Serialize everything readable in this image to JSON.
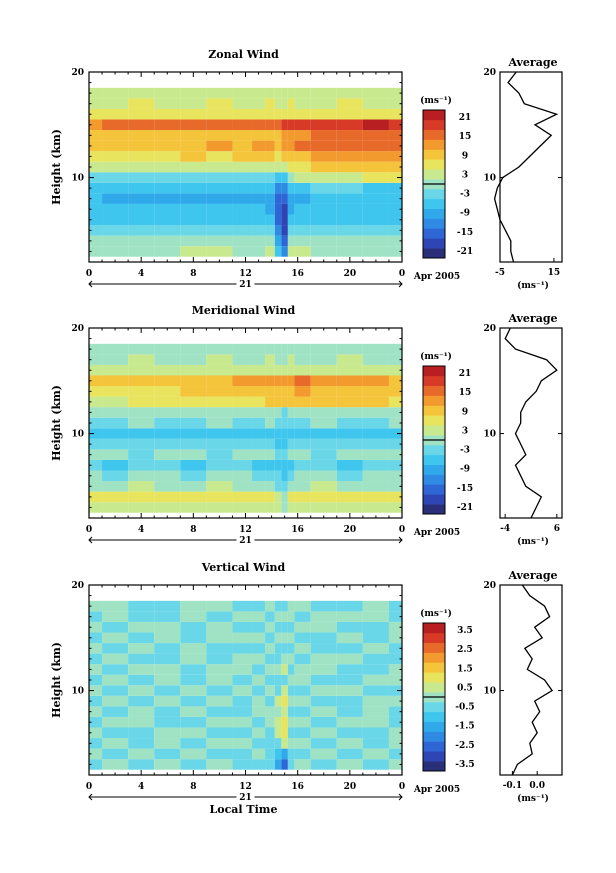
{
  "colorbar_colors": [
    "#2a2f7a",
    "#2e46b3",
    "#2f66d6",
    "#2f8ae3",
    "#2fa9ea",
    "#3fc6ee",
    "#6ad7e8",
    "#9fe3c4",
    "#c9e98e",
    "#e9e45d",
    "#f4c43a",
    "#f29a2e",
    "#e86a2a",
    "#d83a28",
    "#b81f22"
  ],
  "date_label": "Apr 2005",
  "day_label": "21",
  "xlabel": "Local Time",
  "panels": [
    {
      "title": "Zonal Wind",
      "ylabel": "Height (km)",
      "unit_label": "(ms⁻¹)",
      "colorbar_ticks": [
        "21",
        "15",
        "9",
        "3",
        "-3",
        "-9",
        "-15",
        "-21"
      ],
      "profile_title": "Average",
      "profile_ticks": [
        "-5",
        "15"
      ],
      "profile_unit": "(ms⁻¹)"
    },
    {
      "title": "Meridional Wind",
      "ylabel": "Height (km)",
      "unit_label": "(ms⁻¹)",
      "colorbar_ticks": [
        "21",
        "15",
        "9",
        "3",
        "-3",
        "-9",
        "-15",
        "-21"
      ],
      "profile_title": "Average",
      "profile_ticks": [
        "-4",
        "6"
      ],
      "profile_unit": "(ms⁻¹)"
    },
    {
      "title": "Vertical Wind",
      "ylabel": "Height (km)",
      "unit_label": "(ms⁻¹)",
      "colorbar_ticks": [
        "3.5",
        "2.5",
        "1.5",
        "0.5",
        "-0.5",
        "-1.5",
        "-2.5",
        "-3.5"
      ],
      "profile_title": "Average",
      "profile_ticks": [
        "-0.1",
        "0.0"
      ],
      "profile_unit": "(ms⁻¹)"
    }
  ],
  "chart_data": [
    {
      "type": "heatmap",
      "title": "Zonal Wind",
      "xlabel": "",
      "ylabel": "Height (km)",
      "x_ticks": [
        "0",
        "4",
        "8",
        "12",
        "16",
        "20",
        "0"
      ],
      "y_ticks": [
        "10",
        "20"
      ],
      "xlim": [
        0,
        24
      ],
      "ylim": [
        2,
        20
      ],
      "zlim": [
        -24,
        24
      ],
      "time_hours": [
        0,
        2,
        4,
        6,
        8,
        10,
        12,
        13,
        14,
        14.5,
        15,
        15.5,
        16,
        18,
        20,
        22,
        24
      ],
      "height_km": [
        3,
        4,
        5,
        6,
        7,
        8,
        9,
        10,
        11,
        12,
        13,
        14,
        15,
        16,
        17,
        18
      ],
      "values": [
        [
          1,
          1,
          1,
          1,
          2,
          2,
          1,
          1,
          2,
          -6,
          -12,
          2,
          2,
          1,
          1,
          1,
          1
        ],
        [
          -1,
          -1,
          0,
          -1,
          -1,
          0,
          -1,
          -1,
          0,
          -9,
          -16,
          0,
          -1,
          -1,
          0,
          -1,
          -1
        ],
        [
          -2,
          -2,
          -3,
          -2,
          -2,
          -3,
          -2,
          -3,
          -4,
          -13,
          -19,
          -4,
          -3,
          -3,
          -2,
          -2,
          -3
        ],
        [
          -5,
          -6,
          -5,
          -6,
          -6,
          -5,
          -6,
          -6,
          -7,
          -15,
          -20,
          -7,
          -6,
          -5,
          -5,
          -6,
          -6
        ],
        [
          -7,
          -8,
          -8,
          -8,
          -7,
          -8,
          -8,
          -8,
          -9,
          -16,
          -19,
          -9,
          -8,
          -8,
          -7,
          -7,
          -8
        ],
        [
          -8,
          -9,
          -9,
          -9,
          -10,
          -9,
          -9,
          -10,
          -11,
          -15,
          -17,
          -10,
          -9,
          -8,
          -7,
          -8,
          -8
        ],
        [
          -6,
          -7,
          -7,
          -7,
          -7,
          -7,
          -6,
          -7,
          -8,
          -12,
          -14,
          -6,
          -5,
          -4,
          -4,
          -5,
          -5
        ],
        [
          -3,
          -3,
          -3,
          -2,
          -2,
          -3,
          -2,
          -2,
          -3,
          -6,
          -8,
          0,
          2,
          3,
          4,
          5,
          5
        ],
        [
          2,
          2,
          3,
          3,
          3,
          2,
          3,
          4,
          4,
          2,
          2,
          6,
          7,
          8,
          9,
          10,
          9
        ],
        [
          6,
          7,
          7,
          7,
          8,
          7,
          8,
          9,
          9,
          7,
          9,
          10,
          11,
          12,
          13,
          14,
          13
        ],
        [
          10,
          11,
          10,
          11,
          11,
          12,
          11,
          12,
          13,
          11,
          12,
          14,
          15,
          16,
          16,
          17,
          16
        ],
        [
          8,
          9,
          9,
          10,
          10,
          9,
          10,
          11,
          11,
          10,
          12,
          13,
          14,
          15,
          15,
          16,
          15
        ],
        [
          14,
          15,
          15,
          16,
          15,
          16,
          16,
          17,
          17,
          16,
          18,
          18,
          19,
          19,
          20,
          21,
          20
        ],
        [
          6,
          5,
          6,
          6,
          5,
          6,
          5,
          6,
          6,
          5,
          6,
          6,
          5,
          6,
          6,
          5,
          6
        ],
        [
          4,
          4,
          5,
          4,
          4,
          5,
          4,
          4,
          5,
          4,
          4,
          5,
          4,
          4,
          5,
          4,
          4
        ],
        [
          2,
          3,
          2,
          3,
          2,
          3,
          2,
          3,
          2,
          3,
          2,
          3,
          2,
          3,
          2,
          3,
          2
        ]
      ],
      "profile": {
        "xlim": [
          -5,
          18
        ],
        "x_ticks": [
          "-5",
          "15"
        ],
        "y_ticks": [
          "10",
          "20"
        ],
        "height_km": [
          2,
          3,
          4,
          5,
          6,
          7,
          8,
          9,
          10,
          11,
          12,
          13,
          14,
          15,
          16,
          17,
          18,
          19,
          20
        ],
        "values": [
          0,
          -1,
          -1,
          -3,
          -5,
          -6,
          -7,
          -6,
          -4,
          2,
          6,
          10,
          14,
          8,
          16,
          4,
          2,
          -2,
          1
        ]
      }
    },
    {
      "type": "heatmap",
      "title": "Meridional Wind",
      "xlabel": "",
      "ylabel": "Height (km)",
      "x_ticks": [
        "0",
        "4",
        "8",
        "12",
        "16",
        "20",
        "0"
      ],
      "y_ticks": [
        "10",
        "20"
      ],
      "xlim": [
        0,
        24
      ],
      "ylim": [
        2,
        20
      ],
      "zlim": [
        -24,
        24
      ],
      "time_hours": [
        0,
        2,
        4,
        6,
        8,
        10,
        12,
        13,
        14,
        14.5,
        15,
        15.5,
        16,
        18,
        20,
        22,
        24
      ],
      "height_km": [
        3,
        4,
        5,
        6,
        7,
        8,
        9,
        10,
        11,
        12,
        13,
        14,
        15,
        16,
        17,
        18
      ],
      "values": [
        [
          3,
          4,
          4,
          3,
          4,
          4,
          3,
          4,
          4,
          2,
          0,
          3,
          4,
          3,
          4,
          3,
          4
        ],
        [
          5,
          6,
          6,
          7,
          6,
          6,
          5,
          6,
          6,
          4,
          1,
          5,
          6,
          6,
          5,
          6,
          6
        ],
        [
          1,
          1,
          2,
          1,
          1,
          2,
          1,
          1,
          1,
          -2,
          -4,
          1,
          1,
          2,
          1,
          1,
          1
        ],
        [
          -1,
          -2,
          -1,
          -1,
          -2,
          -1,
          -1,
          -2,
          -2,
          -4,
          -6,
          -2,
          -1,
          -1,
          -2,
          -1,
          -1
        ],
        [
          -4,
          -5,
          -4,
          -4,
          -5,
          -4,
          -4,
          -5,
          -5,
          -6,
          -7,
          -5,
          -4,
          -4,
          -5,
          -4,
          -4
        ],
        [
          -1,
          -1,
          -2,
          -1,
          -1,
          -2,
          -1,
          -1,
          -1,
          -3,
          -4,
          -1,
          -1,
          -2,
          -1,
          -1,
          -1
        ],
        [
          -3,
          -4,
          -3,
          -3,
          -4,
          -3,
          -3,
          -4,
          -3,
          -5,
          -6,
          -3,
          -3,
          -4,
          -3,
          -3,
          -4
        ],
        [
          -5,
          -5,
          -6,
          -5,
          -5,
          -6,
          -5,
          -5,
          -6,
          -7,
          -8,
          -5,
          -5,
          -6,
          -5,
          -5,
          -6
        ],
        [
          -2,
          -2,
          -1,
          -2,
          -2,
          -1,
          -2,
          -2,
          -1,
          -3,
          -4,
          -2,
          -2,
          -1,
          -2,
          -2,
          -1
        ],
        [
          0,
          1,
          0,
          1,
          0,
          1,
          0,
          1,
          0,
          -1,
          -2,
          0,
          1,
          0,
          1,
          0,
          1
        ],
        [
          4,
          4,
          5,
          5,
          6,
          6,
          7,
          7,
          8,
          8,
          9,
          9,
          10,
          10,
          9,
          8,
          7
        ],
        [
          6,
          6,
          7,
          7,
          8,
          8,
          9,
          9,
          10,
          10,
          11,
          11,
          12,
          11,
          10,
          9,
          8
        ],
        [
          9,
          9,
          10,
          10,
          11,
          11,
          12,
          12,
          13,
          13,
          14,
          14,
          15,
          14,
          13,
          12,
          11
        ],
        [
          2,
          3,
          2,
          3,
          2,
          3,
          2,
          3,
          2,
          3,
          2,
          3,
          2,
          3,
          2,
          3,
          2
        ],
        [
          1,
          1,
          2,
          1,
          1,
          2,
          1,
          1,
          2,
          1,
          1,
          2,
          1,
          1,
          2,
          1,
          1
        ],
        [
          0,
          1,
          0,
          1,
          0,
          1,
          0,
          1,
          0,
          1,
          0,
          1,
          0,
          1,
          0,
          1,
          0
        ]
      ],
      "profile": {
        "xlim": [
          -5,
          7
        ],
        "x_ticks": [
          "-4",
          "6"
        ],
        "y_ticks": [
          "10",
          "20"
        ],
        "height_km": [
          2,
          3,
          4,
          5,
          6,
          7,
          8,
          9,
          10,
          11,
          12,
          13,
          14,
          15,
          16,
          17,
          18,
          19,
          20
        ],
        "values": [
          1,
          2,
          3,
          0,
          -1,
          -2,
          0,
          -1,
          -2,
          -1,
          -1,
          0,
          2,
          3,
          6,
          4,
          -2,
          -4,
          -3
        ]
      }
    },
    {
      "type": "heatmap",
      "title": "Vertical Wind",
      "xlabel": "Local Time",
      "ylabel": "Height (km)",
      "x_ticks": [
        "0",
        "4",
        "8",
        "12",
        "16",
        "20",
        "0"
      ],
      "y_ticks": [
        "10",
        "20"
      ],
      "xlim": [
        0,
        24
      ],
      "ylim": [
        2,
        20
      ],
      "zlim": [
        -4,
        4
      ],
      "time_hours": [
        0,
        2,
        4,
        6,
        8,
        10,
        12,
        13,
        14,
        14.5,
        15,
        15.5,
        16,
        18,
        20,
        22,
        24
      ],
      "height_km": [
        3,
        4,
        5,
        6,
        7,
        8,
        9,
        10,
        11,
        12,
        13,
        14,
        15,
        16,
        17,
        18
      ],
      "values": [
        [
          -0.3,
          -0.1,
          -0.4,
          -0.2,
          -0.5,
          -0.1,
          -0.3,
          -0.4,
          -0.6,
          -1.5,
          -2.5,
          -0.4,
          -0.2,
          -0.3,
          -0.1,
          -0.4,
          -0.2
        ],
        [
          -0.2,
          -0.4,
          -0.1,
          -0.5,
          -0.2,
          -0.3,
          -0.5,
          -0.2,
          -0.4,
          -1.0,
          -1.8,
          -0.3,
          -0.4,
          -0.2,
          -0.5,
          -0.1,
          -0.3
        ],
        [
          -0.4,
          -0.2,
          -0.3,
          -0.1,
          -0.4,
          -0.2,
          -0.1,
          -0.3,
          -0.5,
          -0.6,
          0.4,
          -0.2,
          -0.1,
          -0.4,
          -0.2,
          -0.3,
          -0.1
        ],
        [
          -0.1,
          -0.3,
          -0.5,
          -0.2,
          -0.1,
          -0.4,
          -0.3,
          -0.1,
          -0.3,
          0.6,
          1.0,
          -0.4,
          -0.3,
          -0.1,
          -0.3,
          -0.5,
          -0.2
        ],
        [
          -0.3,
          -0.1,
          -0.2,
          -0.4,
          -0.3,
          -0.1,
          -0.2,
          -0.4,
          -0.2,
          0.3,
          0.8,
          -0.1,
          -0.2,
          -0.4,
          -0.1,
          -0.2,
          -0.4
        ],
        [
          -0.2,
          -0.4,
          -0.1,
          -0.3,
          -0.2,
          -0.5,
          -0.4,
          -0.2,
          -0.1,
          -0.2,
          0.5,
          -0.3,
          -0.4,
          -0.2,
          -0.3,
          -0.1,
          -0.3
        ],
        [
          -0.4,
          -0.2,
          -0.3,
          -0.1,
          -0.5,
          -0.2,
          -0.3,
          -0.1,
          -0.4,
          0.4,
          1.2,
          -0.2,
          -0.1,
          -0.3,
          -0.4,
          -0.2,
          -0.1
        ],
        [
          -0.1,
          -0.3,
          -0.2,
          -0.4,
          -0.1,
          -0.3,
          -0.2,
          -0.4,
          -0.2,
          -0.3,
          0.6,
          -0.4,
          -0.3,
          -0.2,
          -0.1,
          -0.3,
          -0.4
        ],
        [
          -0.3,
          -0.2,
          -0.4,
          -0.1,
          -0.3,
          -0.2,
          -0.4,
          -0.1,
          -0.3,
          -0.6,
          -0.4,
          -0.1,
          -0.2,
          -0.4,
          -0.3,
          -0.1,
          -0.2
        ],
        [
          -0.2,
          -0.3,
          -0.1,
          -0.2,
          -0.4,
          -0.1,
          -0.2,
          -0.3,
          -0.1,
          0.2,
          0.7,
          -0.3,
          -0.1,
          -0.2,
          -0.3,
          -0.4,
          -0.1
        ],
        [
          -0.4,
          -0.1,
          -0.3,
          -0.4,
          -0.2,
          -0.3,
          -0.1,
          -0.2,
          -0.4,
          -0.5,
          -0.2,
          -0.2,
          -0.4,
          -0.1,
          -0.2,
          -0.3,
          -0.4
        ],
        [
          -0.1,
          -0.4,
          -0.2,
          -0.3,
          -0.1,
          -0.4,
          -0.3,
          -0.4,
          -0.2,
          -0.3,
          -0.4,
          -0.4,
          -0.2,
          -0.3,
          -0.4,
          -0.2,
          -0.3
        ],
        [
          -0.3,
          -0.2,
          -0.4,
          -0.1,
          -0.3,
          -0.2,
          -0.2,
          -0.1,
          -0.3,
          -0.2,
          -0.1,
          -0.1,
          -0.3,
          -0.4,
          -0.1,
          -0.3,
          -0.2
        ],
        [
          -0.2,
          -0.3,
          -0.1,
          -0.2,
          -0.4,
          -0.1,
          -0.4,
          -0.3,
          -0.1,
          -0.4,
          -0.3,
          -0.3,
          -0.1,
          -0.2,
          -0.3,
          -0.4,
          -0.1
        ],
        [
          -0.4,
          -0.1,
          -0.3,
          -0.4,
          -0.2,
          -0.3,
          -0.1,
          -0.2,
          -0.4,
          -0.1,
          -0.2,
          -0.2,
          -0.4,
          -0.1,
          -0.2,
          -0.1,
          -0.3
        ],
        [
          -0.1,
          -0.2,
          -0.4,
          -0.3,
          -0.1,
          -0.2,
          -0.3,
          -0.4,
          -0.2,
          -0.3,
          -0.4,
          -0.1,
          -0.2,
          -0.3,
          -0.4,
          -0.2,
          -0.4
        ]
      ],
      "profile": {
        "xlim": [
          -0.15,
          0.1
        ],
        "x_ticks": [
          "-0.1",
          "0.0"
        ],
        "y_ticks": [
          "10",
          "20"
        ],
        "height_km": [
          2,
          3,
          4,
          5,
          6,
          7,
          8,
          9,
          10,
          11,
          12,
          13,
          14,
          15,
          16,
          17,
          18,
          19,
          20
        ],
        "values": [
          -0.1,
          -0.08,
          -0.02,
          -0.03,
          0.0,
          -0.02,
          0.01,
          -0.01,
          0.06,
          0.03,
          -0.04,
          -0.02,
          -0.05,
          0.02,
          -0.01,
          0.05,
          0.03,
          -0.03,
          -0.06
        ]
      }
    }
  ]
}
